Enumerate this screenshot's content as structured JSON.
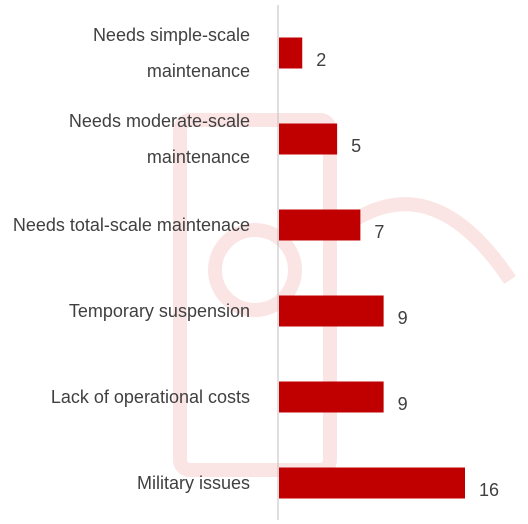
{
  "chart_data": {
    "type": "bar",
    "orientation": "horizontal",
    "categories": [
      "Needs simple-scale maintenance",
      "Needs moderate-scale maintenance",
      "Needs total-scale maintenace",
      "Temporary suspension",
      "Lack of operational costs",
      "Military issues"
    ],
    "values": [
      2,
      5,
      7,
      9,
      9,
      16
    ],
    "color": "#c00000"
  }
}
